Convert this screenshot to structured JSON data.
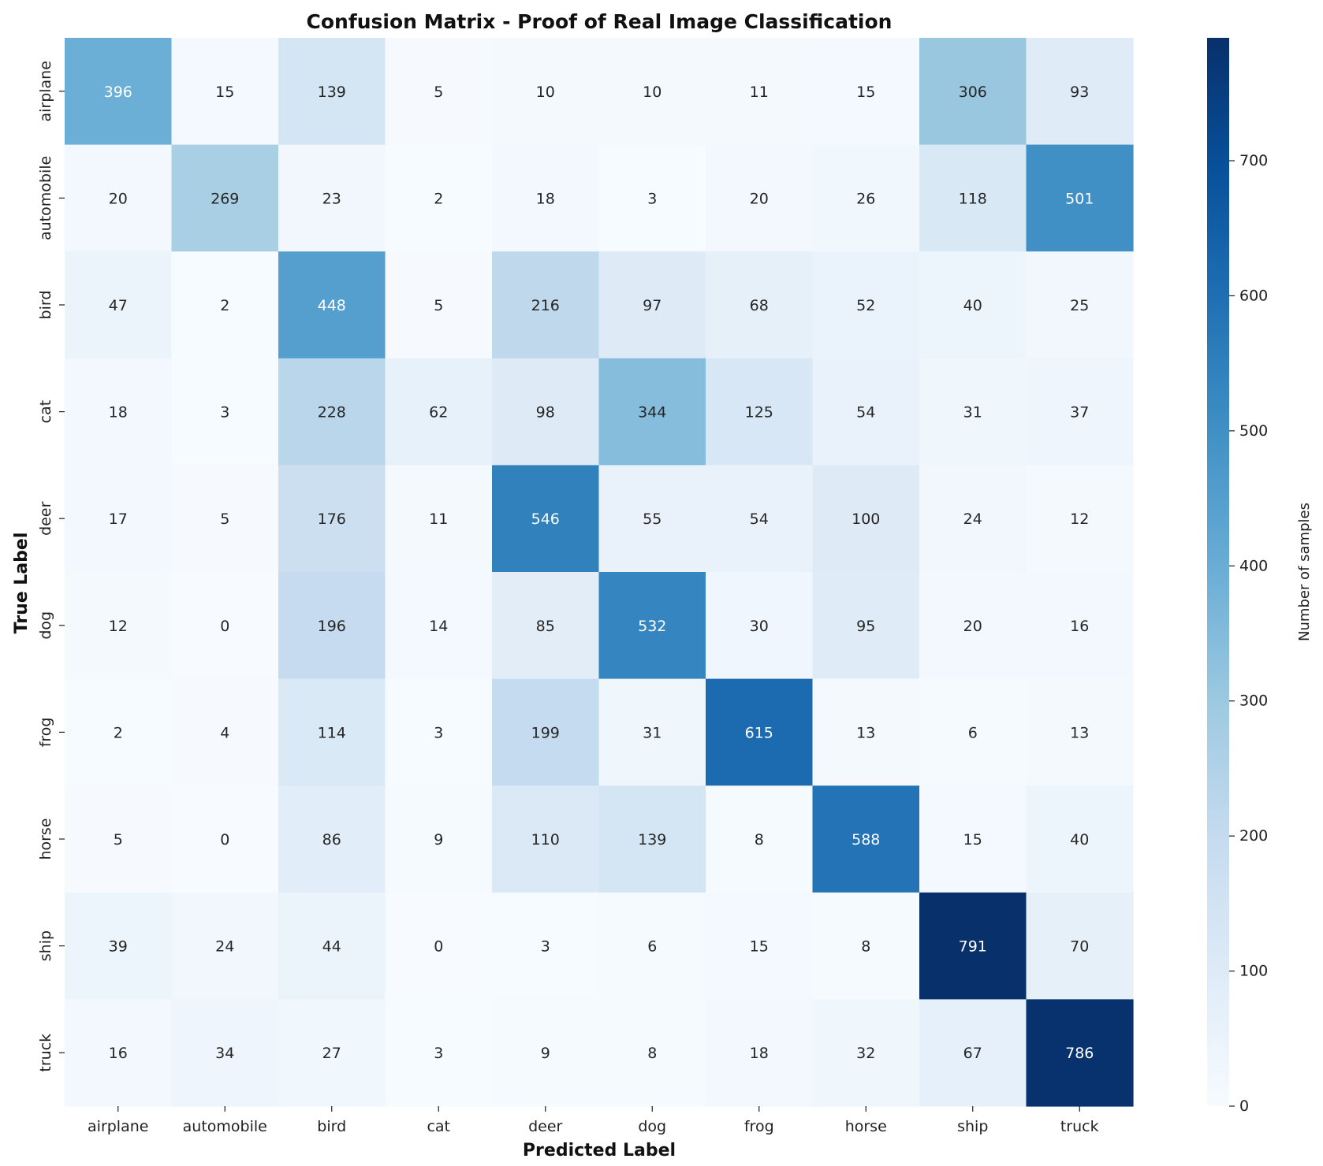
{
  "chart_data": {
    "type": "heatmap",
    "title": "Confusion Matrix - Proof of Real Image Classification",
    "xlabel": "Predicted Label",
    "ylabel": "True Label",
    "x_categories": [
      "airplane",
      "automobile",
      "bird",
      "cat",
      "deer",
      "dog",
      "frog",
      "horse",
      "ship",
      "truck"
    ],
    "y_categories": [
      "airplane",
      "automobile",
      "bird",
      "cat",
      "deer",
      "dog",
      "frog",
      "horse",
      "ship",
      "truck"
    ],
    "values": [
      [
        396,
        15,
        139,
        5,
        10,
        10,
        11,
        15,
        306,
        93
      ],
      [
        20,
        269,
        23,
        2,
        18,
        3,
        20,
        26,
        118,
        501
      ],
      [
        47,
        2,
        448,
        5,
        216,
        97,
        68,
        52,
        40,
        25
      ],
      [
        18,
        3,
        228,
        62,
        98,
        344,
        125,
        54,
        31,
        37
      ],
      [
        17,
        5,
        176,
        11,
        546,
        55,
        54,
        100,
        24,
        12
      ],
      [
        12,
        0,
        196,
        14,
        85,
        532,
        30,
        95,
        20,
        16
      ],
      [
        2,
        4,
        114,
        3,
        199,
        31,
        615,
        13,
        6,
        13
      ],
      [
        5,
        0,
        86,
        9,
        110,
        139,
        8,
        588,
        15,
        40
      ],
      [
        39,
        24,
        44,
        0,
        3,
        6,
        15,
        8,
        791,
        70
      ],
      [
        16,
        34,
        27,
        3,
        9,
        8,
        18,
        32,
        67,
        786
      ]
    ],
    "colorbar": {
      "label": "Number of samples",
      "ticks": [
        0,
        100,
        200,
        300,
        400,
        500,
        600,
        700
      ],
      "range": [
        0,
        791
      ],
      "colormap": "Blues"
    },
    "colors": {
      "scale": [
        "#f7fbff",
        "#deebf7",
        "#c6dbef",
        "#9ecae1",
        "#6baed6",
        "#4292c6",
        "#2171b5",
        "#08519c",
        "#08306b"
      ],
      "text_light": "#ffffff",
      "text_dark": "#262626"
    },
    "grid": false
  }
}
